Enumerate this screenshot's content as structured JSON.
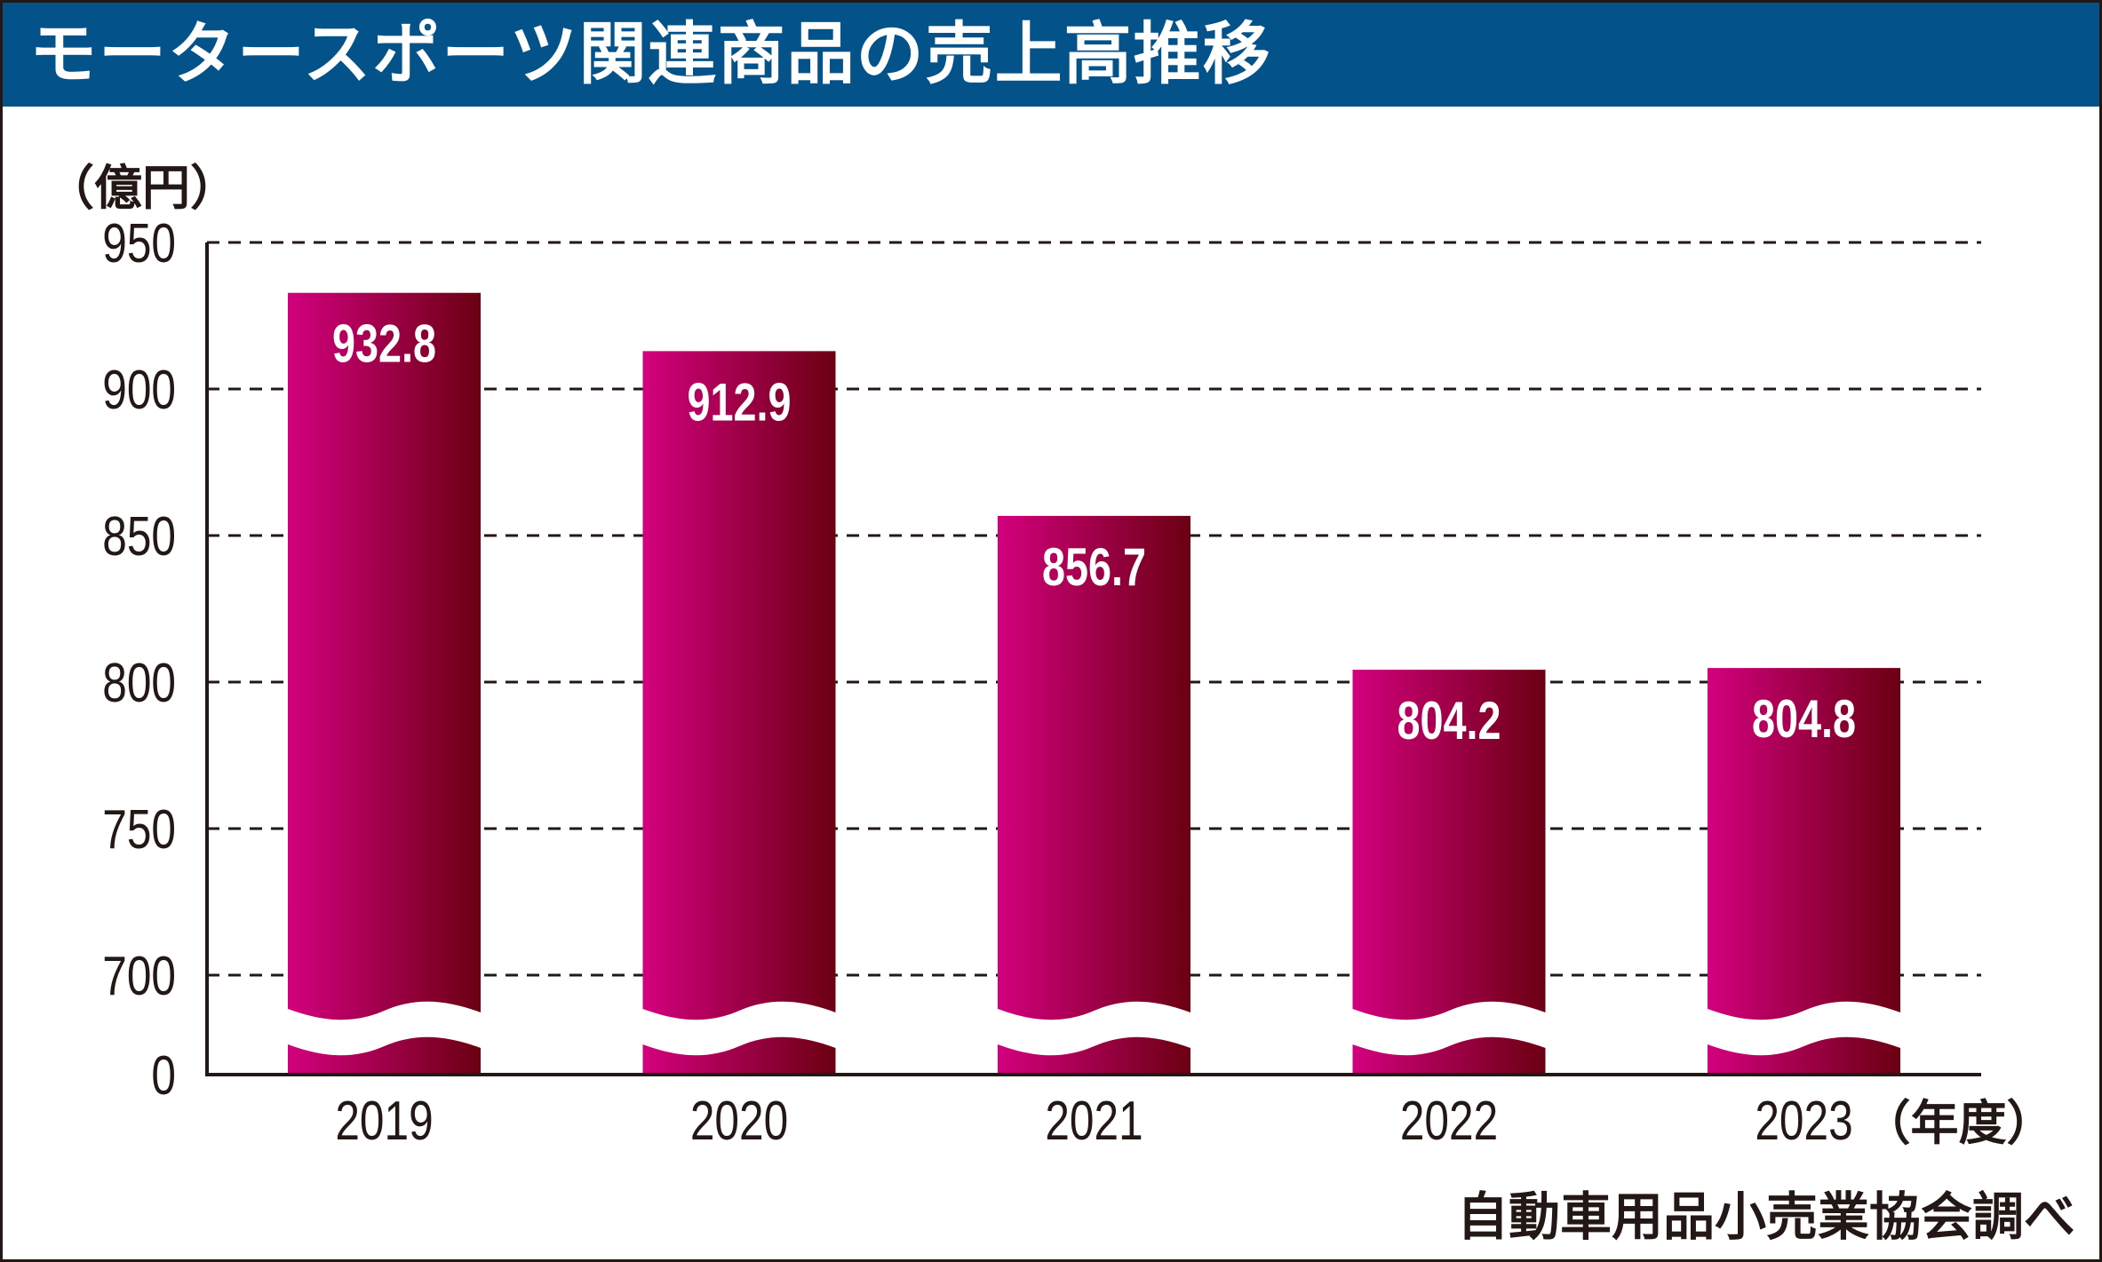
{
  "title": "モータースポーツ関連商品の売上高推移",
  "chart_data": {
    "type": "bar",
    "title": "モータースポーツ関連商品の売上高推移",
    "ylabel": "（億円）",
    "xlabel": "（年度）",
    "categories": [
      "2019",
      "2020",
      "2021",
      "2022",
      "2023"
    ],
    "values": [
      932.8,
      912.9,
      856.7,
      804.2,
      804.8
    ],
    "value_labels": [
      "932.8",
      "912.9",
      "856.7",
      "804.2",
      "804.8"
    ],
    "yticks": [
      0,
      700,
      750,
      800,
      850,
      900,
      950
    ],
    "ytick_labels": [
      "0",
      "700",
      "750",
      "800",
      "850",
      "900",
      "950"
    ],
    "ylim": [
      700,
      950
    ],
    "axis_break": {
      "from": 0,
      "to": 700
    },
    "grid": true,
    "grid_style": "dashed",
    "legend": "none",
    "source": "自動車用品小売業協会調べ",
    "colors": {
      "bar_gradient_start": "#d3007e",
      "bar_gradient_end": "#6b0012",
      "title_bar": "#04528a",
      "text": "#231815",
      "value_text": "#ffffff"
    }
  }
}
